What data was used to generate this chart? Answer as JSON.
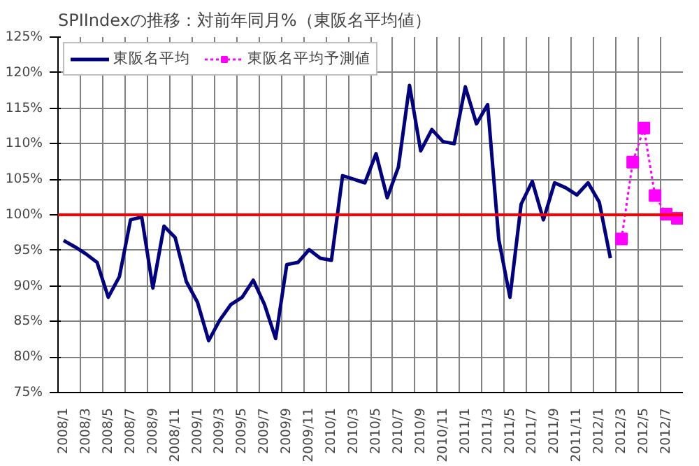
{
  "chart_data": {
    "type": "line",
    "title": "SPIIndexの推移：対前年同月%（東阪名平均値）",
    "categories": [
      "2008/1",
      null,
      "2008/3",
      null,
      "2008/5",
      null,
      "2008/7",
      null,
      "2008/9",
      null,
      "2008/11",
      null,
      "2009/1",
      null,
      "2009/3",
      null,
      "2009/5",
      null,
      "2009/7",
      null,
      "2009/9",
      null,
      "2009/11",
      null,
      "2010/1",
      null,
      "2010/3",
      null,
      "2010/5",
      null,
      "2010/7",
      null,
      "2010/9",
      null,
      "2010/11",
      null,
      "2011/1",
      null,
      "2011/3",
      null,
      "2011/5",
      null,
      "2011/7",
      null,
      "2011/9",
      null,
      "2011/11",
      null,
      "2012/1",
      null,
      "2012/3",
      null,
      "2012/5",
      null,
      "2012/7",
      null
    ],
    "series": [
      {
        "name": "東阪名平均",
        "color": "#000080",
        "marker": "none",
        "line_style": "solid",
        "values": [
          96.4,
          95.5,
          94.5,
          93.3,
          88.4,
          91.3,
          99.3,
          99.7,
          89.7,
          98.4,
          96.8,
          90.6,
          87.7,
          82.3,
          85.2,
          87.4,
          88.4,
          90.8,
          87.4,
          82.6,
          93,
          93.3,
          95.1,
          93.9,
          93.6,
          105.5,
          105,
          104.5,
          108.6,
          102.4,
          106.7,
          118.2,
          109,
          112,
          110.3,
          110,
          118,
          112.8,
          115.5,
          96.5,
          88.4,
          101.5,
          104.7,
          99.3,
          104.5,
          103.8,
          102.8,
          104.5,
          101.8,
          93.9,
          null,
          null,
          null,
          null,
          null,
          null
        ]
      },
      {
        "name": "東阪名平均予測値",
        "color": "#ff00ff",
        "marker": "square",
        "line_style": "dotted",
        "values": [
          null,
          null,
          null,
          null,
          null,
          null,
          null,
          null,
          null,
          null,
          null,
          null,
          null,
          null,
          null,
          null,
          null,
          null,
          null,
          null,
          null,
          null,
          null,
          null,
          null,
          null,
          null,
          null,
          null,
          null,
          null,
          null,
          null,
          null,
          null,
          null,
          null,
          null,
          null,
          null,
          null,
          null,
          null,
          null,
          null,
          null,
          null,
          null,
          null,
          null,
          96.6,
          107.4,
          112.2,
          102.7,
          100.1,
          99.5
        ]
      }
    ],
    "ylim": [
      75,
      125
    ],
    "yticks": [
      {
        "value": 75,
        "label": "75%"
      },
      {
        "value": 80,
        "label": "80%"
      },
      {
        "value": 85,
        "label": "85%"
      },
      {
        "value": 90,
        "label": "90%"
      },
      {
        "value": 95,
        "label": "95%"
      },
      {
        "value": 100,
        "label": "100%"
      },
      {
        "value": 105,
        "label": "105%"
      },
      {
        "value": 110,
        "label": "110%"
      },
      {
        "value": 115,
        "label": "115%"
      },
      {
        "value": 120,
        "label": "120%"
      },
      {
        "value": 125,
        "label": "125%"
      }
    ],
    "ref_lines": [
      {
        "axis": "y",
        "value": 100,
        "color": "#ff0000"
      }
    ],
    "grid": true,
    "legend": "top left"
  }
}
